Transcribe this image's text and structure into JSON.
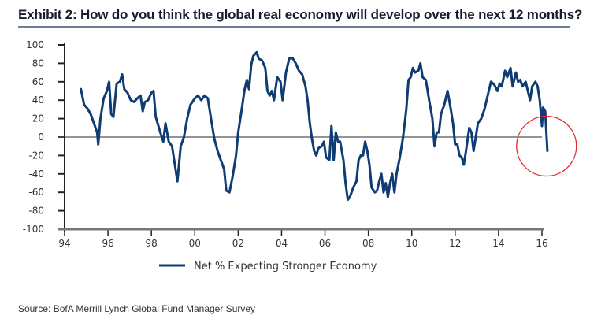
{
  "header": {
    "title": "Exhibit 2: How do you think the global real economy will develop over the next 12 months?"
  },
  "footer": {
    "source": "Source: BofA Merrill Lynch Global Fund Manager Survey"
  },
  "colors": {
    "series": "#0f3d73",
    "axis": "#777777",
    "zero_line": "#555555",
    "highlight_circle": "#e8262b",
    "title_rule": "#6b7f99"
  },
  "chart_data": {
    "type": "line",
    "title": "How do you think the global real economy will develop over the next 12 months?",
    "xlabel": "",
    "ylabel": "",
    "xlim": [
      1994,
      2016
    ],
    "ylim": [
      -100,
      100
    ],
    "yticks": [
      100,
      80,
      60,
      40,
      20,
      0,
      -20,
      -40,
      -60,
      -80,
      -100
    ],
    "xticks": [
      {
        "value": 1994,
        "label": "94"
      },
      {
        "value": 1996,
        "label": "96"
      },
      {
        "value": 1998,
        "label": "98"
      },
      {
        "value": 2000,
        "label": "00"
      },
      {
        "value": 2002,
        "label": "02"
      },
      {
        "value": 2004,
        "label": "04"
      },
      {
        "value": 2006,
        "label": "06"
      },
      {
        "value": 2008,
        "label": "08"
      },
      {
        "value": 2010,
        "label": "10"
      },
      {
        "value": 2012,
        "label": "12"
      },
      {
        "value": 2014,
        "label": "14"
      },
      {
        "value": 2016,
        "label": "16"
      }
    ],
    "grid": false,
    "legend": {
      "position": "bottom-center",
      "entries": [
        "Net % Expecting Stronger Economy"
      ]
    },
    "annotations": [
      {
        "type": "circle",
        "target_x": 2016.1,
        "target_y": -15,
        "description": "red circle highlighting latest drop below zero"
      }
    ],
    "series": [
      {
        "name": "Net % Expecting Stronger Economy",
        "points": [
          [
            1994.75,
            52
          ],
          [
            1994.9,
            35
          ],
          [
            1995.05,
            31
          ],
          [
            1995.2,
            25
          ],
          [
            1995.35,
            15
          ],
          [
            1995.5,
            5
          ],
          [
            1995.55,
            -8
          ],
          [
            1995.65,
            20
          ],
          [
            1995.8,
            42
          ],
          [
            1995.95,
            50
          ],
          [
            1996.05,
            60
          ],
          [
            1996.15,
            25
          ],
          [
            1996.25,
            22
          ],
          [
            1996.4,
            58
          ],
          [
            1996.55,
            60
          ],
          [
            1996.65,
            68
          ],
          [
            1996.75,
            52
          ],
          [
            1996.9,
            48
          ],
          [
            1997.05,
            40
          ],
          [
            1997.2,
            38
          ],
          [
            1997.35,
            42
          ],
          [
            1997.5,
            45
          ],
          [
            1997.6,
            28
          ],
          [
            1997.7,
            38
          ],
          [
            1997.85,
            40
          ],
          [
            1998.0,
            48
          ],
          [
            1998.1,
            50
          ],
          [
            1998.2,
            22
          ],
          [
            1998.35,
            10
          ],
          [
            1998.45,
            2
          ],
          [
            1998.55,
            -5
          ],
          [
            1998.65,
            15
          ],
          [
            1998.8,
            -5
          ],
          [
            1998.95,
            -10
          ],
          [
            1999.05,
            -25
          ],
          [
            1999.2,
            -48
          ],
          [
            1999.35,
            -10
          ],
          [
            1999.5,
            0
          ],
          [
            1999.65,
            20
          ],
          [
            1999.8,
            35
          ],
          [
            2000.0,
            42
          ],
          [
            2000.15,
            45
          ],
          [
            2000.3,
            40
          ],
          [
            2000.45,
            45
          ],
          [
            2000.6,
            42
          ],
          [
            2000.75,
            20
          ],
          [
            2000.9,
            -2
          ],
          [
            2001.05,
            -15
          ],
          [
            2001.2,
            -25
          ],
          [
            2001.35,
            -35
          ],
          [
            2001.45,
            -58
          ],
          [
            2001.6,
            -60
          ],
          [
            2001.75,
            -42
          ],
          [
            2001.9,
            -20
          ],
          [
            2002.0,
            5
          ],
          [
            2002.15,
            28
          ],
          [
            2002.3,
            52
          ],
          [
            2002.4,
            62
          ],
          [
            2002.5,
            52
          ],
          [
            2002.6,
            78
          ],
          [
            2002.7,
            88
          ],
          [
            2002.85,
            92
          ],
          [
            2002.95,
            85
          ],
          [
            2003.1,
            83
          ],
          [
            2003.25,
            75
          ],
          [
            2003.35,
            50
          ],
          [
            2003.45,
            45
          ],
          [
            2003.55,
            50
          ],
          [
            2003.65,
            40
          ],
          [
            2003.8,
            65
          ],
          [
            2003.95,
            60
          ],
          [
            2004.05,
            40
          ],
          [
            2004.2,
            70
          ],
          [
            2004.35,
            85
          ],
          [
            2004.5,
            86
          ],
          [
            2004.65,
            80
          ],
          [
            2004.8,
            72
          ],
          [
            2004.95,
            68
          ],
          [
            2005.1,
            55
          ],
          [
            2005.2,
            40
          ],
          [
            2005.3,
            15
          ],
          [
            2005.4,
            -2
          ],
          [
            2005.5,
            -15
          ],
          [
            2005.6,
            -20
          ],
          [
            2005.7,
            -12
          ],
          [
            2005.85,
            -10
          ],
          [
            2005.95,
            -5
          ],
          [
            2006.05,
            -22
          ],
          [
            2006.2,
            -25
          ],
          [
            2006.3,
            12
          ],
          [
            2006.4,
            -25
          ],
          [
            2006.5,
            5
          ],
          [
            2006.6,
            -5
          ],
          [
            2006.7,
            -5
          ],
          [
            2006.85,
            -25
          ],
          [
            2006.95,
            -50
          ],
          [
            2007.05,
            -68
          ],
          [
            2007.15,
            -65
          ],
          [
            2007.3,
            -55
          ],
          [
            2007.45,
            -48
          ],
          [
            2007.55,
            -25
          ],
          [
            2007.65,
            -20
          ],
          [
            2007.75,
            -20
          ],
          [
            2007.85,
            -5
          ],
          [
            2007.95,
            -15
          ],
          [
            2008.05,
            -30
          ],
          [
            2008.15,
            -55
          ],
          [
            2008.3,
            -60
          ],
          [
            2008.4,
            -58
          ],
          [
            2008.5,
            -48
          ],
          [
            2008.6,
            -40
          ],
          [
            2008.7,
            -60
          ],
          [
            2008.8,
            -50
          ],
          [
            2008.9,
            -65
          ],
          [
            2009.0,
            -50
          ],
          [
            2009.1,
            -40
          ],
          [
            2009.2,
            -60
          ],
          [
            2009.3,
            -40
          ],
          [
            2009.45,
            -22
          ],
          [
            2009.6,
            0
          ],
          [
            2009.75,
            30
          ],
          [
            2009.85,
            62
          ],
          [
            2009.95,
            65
          ],
          [
            2010.05,
            75
          ],
          [
            2010.15,
            70
          ],
          [
            2010.3,
            72
          ],
          [
            2010.4,
            80
          ],
          [
            2010.5,
            65
          ],
          [
            2010.65,
            62
          ],
          [
            2010.8,
            40
          ],
          [
            2010.95,
            20
          ],
          [
            2011.05,
            -10
          ],
          [
            2011.15,
            5
          ],
          [
            2011.25,
            5
          ],
          [
            2011.35,
            25
          ],
          [
            2011.5,
            35
          ],
          [
            2011.65,
            50
          ],
          [
            2011.8,
            30
          ],
          [
            2011.9,
            15
          ],
          [
            2012.0,
            -8
          ],
          [
            2012.1,
            -8
          ],
          [
            2012.2,
            -20
          ],
          [
            2012.3,
            -22
          ],
          [
            2012.4,
            -30
          ],
          [
            2012.5,
            -15
          ],
          [
            2012.65,
            10
          ],
          [
            2012.75,
            5
          ],
          [
            2012.85,
            -15
          ],
          [
            2012.95,
            0
          ],
          [
            2013.05,
            15
          ],
          [
            2013.2,
            20
          ],
          [
            2013.35,
            30
          ],
          [
            2013.5,
            45
          ],
          [
            2013.65,
            60
          ],
          [
            2013.8,
            57
          ],
          [
            2013.95,
            50
          ],
          [
            2014.05,
            58
          ],
          [
            2014.15,
            55
          ],
          [
            2014.3,
            72
          ],
          [
            2014.4,
            65
          ],
          [
            2014.55,
            75
          ],
          [
            2014.65,
            55
          ],
          [
            2014.8,
            70
          ],
          [
            2014.9,
            60
          ],
          [
            2015.0,
            62
          ],
          [
            2015.1,
            55
          ],
          [
            2015.25,
            60
          ],
          [
            2015.35,
            50
          ],
          [
            2015.45,
            40
          ],
          [
            2015.55,
            55
          ],
          [
            2015.7,
            60
          ],
          [
            2015.8,
            55
          ],
          [
            2015.9,
            40
          ],
          [
            2016.0,
            12
          ],
          [
            2016.05,
            32
          ],
          [
            2016.15,
            28
          ],
          [
            2016.25,
            -15
          ]
        ]
      }
    ]
  }
}
